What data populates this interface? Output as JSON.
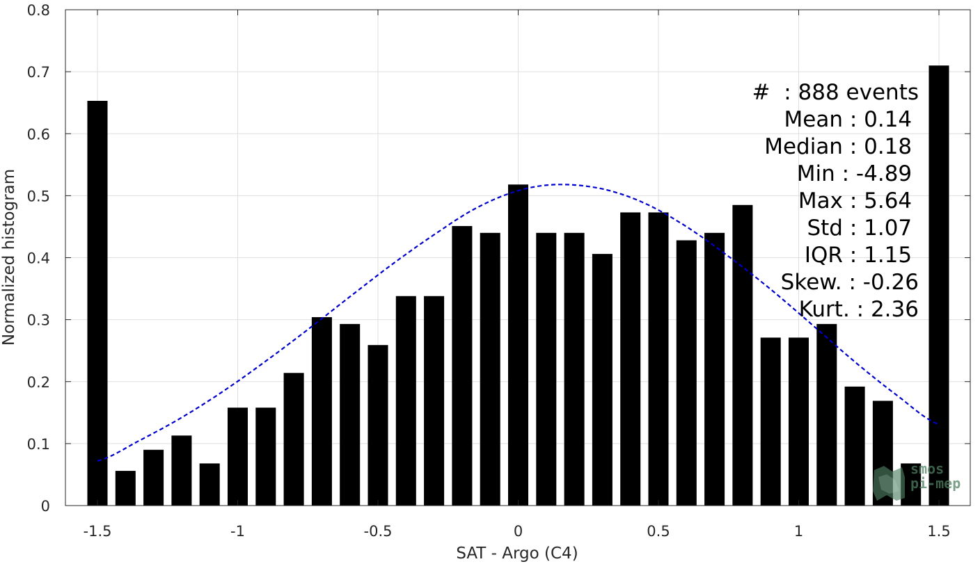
{
  "chart_data": {
    "type": "bar",
    "xlabel": "SAT - Argo (C4)",
    "ylabel": "Normalized histogram",
    "xlim": [
      -1.5,
      1.5
    ],
    "ylim": [
      0,
      0.8
    ],
    "grid": true,
    "x_ticks": [
      -1.5,
      -1,
      -0.5,
      0,
      0.5,
      1,
      1.5
    ],
    "x_tick_labels": [
      "-1.5",
      "-1",
      "-0.5",
      "0",
      "0.5",
      "1",
      "1.5"
    ],
    "y_ticks": [
      0,
      0.1,
      0.2,
      0.3,
      0.4,
      0.5,
      0.6,
      0.7,
      0.8
    ],
    "y_tick_labels": [
      "0",
      "0.1",
      "0.2",
      "0.3",
      "0.4",
      "0.5",
      "0.6",
      "0.7",
      "0.8"
    ],
    "bar_color": "#000000",
    "bars": {
      "x": [
        -1.5,
        -1.4,
        -1.3,
        -1.2,
        -1.1,
        -1.0,
        -0.9,
        -0.8,
        -0.7,
        -0.6,
        -0.5,
        -0.4,
        -0.3,
        -0.2,
        -0.1,
        0.0,
        0.1,
        0.2,
        0.3,
        0.4,
        0.5,
        0.6,
        0.7,
        0.8,
        0.9,
        1.0,
        1.1,
        1.2,
        1.3,
        1.4,
        1.5
      ],
      "values": [
        0.653,
        0.056,
        0.09,
        0.113,
        0.068,
        0.158,
        0.158,
        0.214,
        0.304,
        0.293,
        0.259,
        0.338,
        0.338,
        0.451,
        0.44,
        0.518,
        0.44,
        0.44,
        0.406,
        0.473,
        0.473,
        0.428,
        0.44,
        0.485,
        0.271,
        0.271,
        0.293,
        0.192,
        0.169,
        0.068,
        0.71
      ]
    },
    "fit_curve": {
      "style": "dashed",
      "color": "#0000cc",
      "x": [
        -1.5,
        -1.35,
        -1.2,
        -1.05,
        -0.9,
        -0.75,
        -0.6,
        -0.45,
        -0.3,
        -0.15,
        0.0,
        0.14,
        0.3,
        0.45,
        0.6,
        0.75,
        0.9,
        1.05,
        1.2,
        1.35,
        1.5
      ],
      "values": [
        0.072,
        0.105,
        0.142,
        0.185,
        0.233,
        0.284,
        0.337,
        0.389,
        0.437,
        0.48,
        0.508,
        0.518,
        0.511,
        0.488,
        0.45,
        0.402,
        0.349,
        0.291,
        0.232,
        0.178,
        0.131
      ]
    }
  },
  "stats": [
    "#  : 888 events",
    "Mean : 0.14 ",
    "Median : 0.18 ",
    "Min : -4.89 ",
    "Max : 5.64 ",
    "Std : 1.07 ",
    "IQR : 1.15 ",
    "Skew. : -0.26",
    "Kurt. : 2.36"
  ],
  "logo": {
    "line1": "smos",
    "line2": "pi-mep",
    "color": "#4f7f62"
  }
}
